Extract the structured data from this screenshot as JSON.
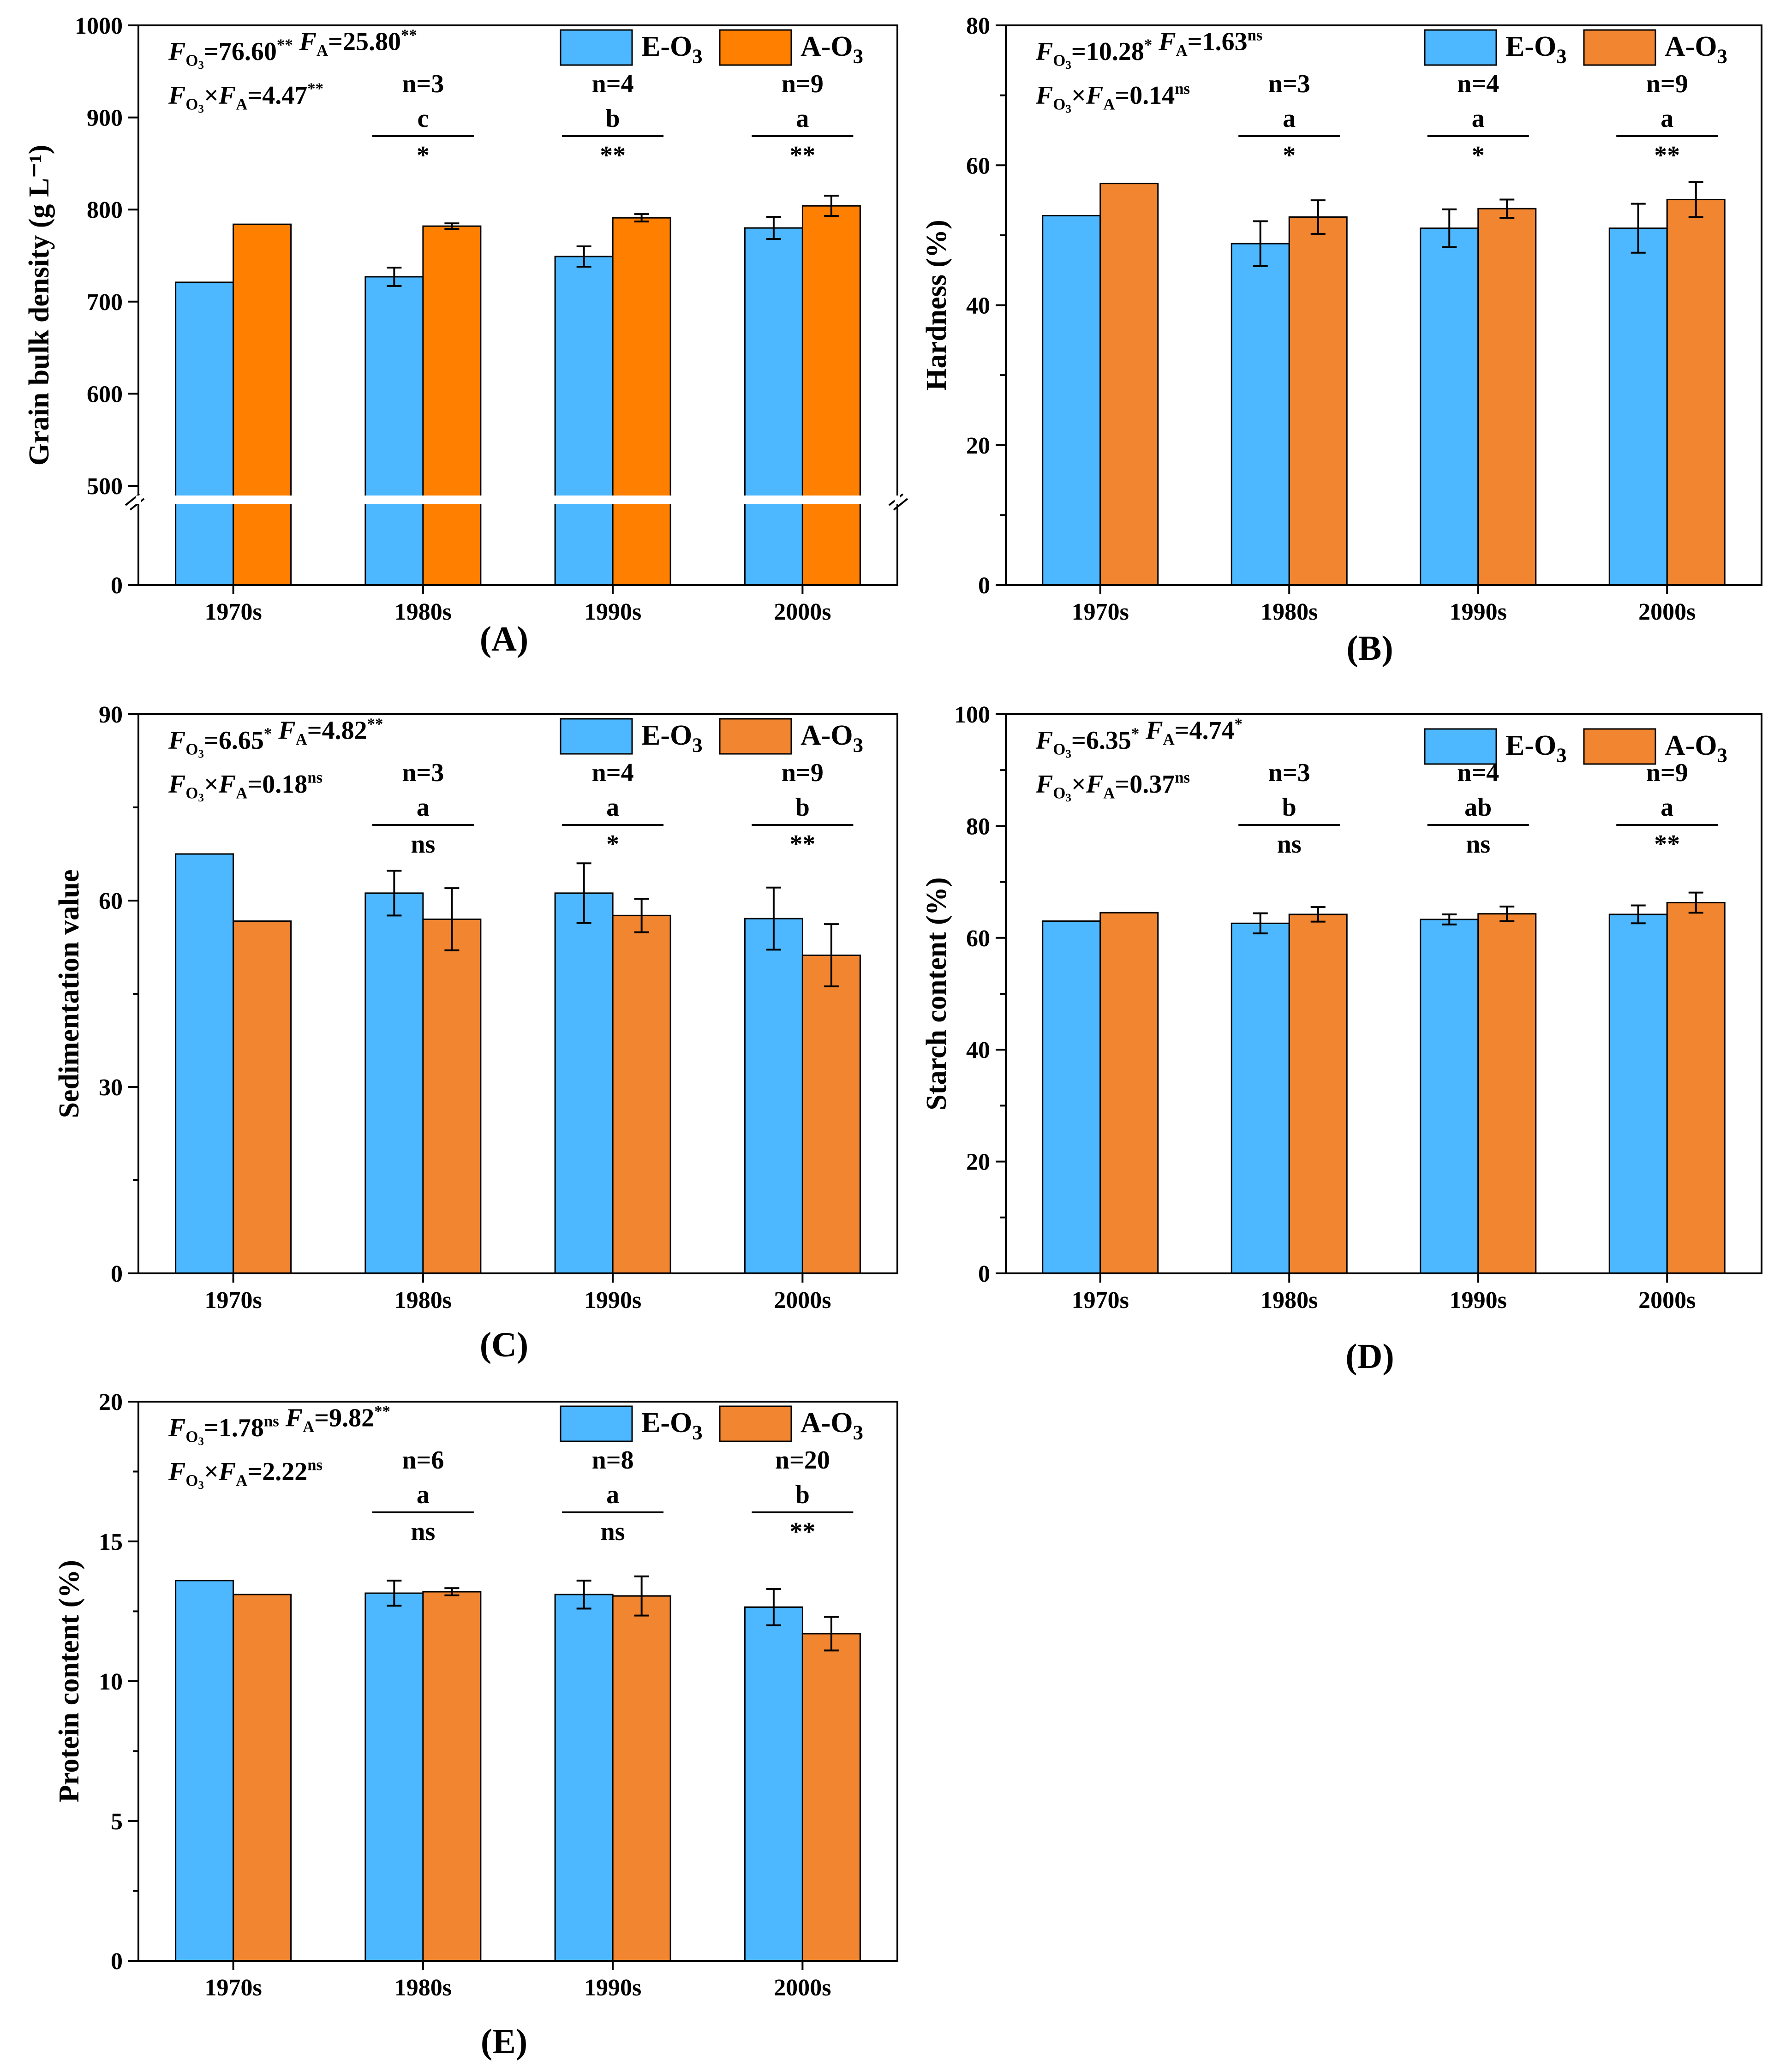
{
  "colors": {
    "e": "#4db8ff",
    "a_dark": "#ff7f00",
    "a": "#f28530",
    "axis": "#000000"
  },
  "legend": {
    "e": "E-O₃",
    "a": "A-O₃"
  },
  "chart_data": [
    {
      "id": "A",
      "type": "bar",
      "panel_label": "(A)",
      "ylabel": "Grain bulk density (g L⁻¹)",
      "categories": [
        "1970s",
        "1980s",
        "1990s",
        "2000s"
      ],
      "ylim": [
        0,
        1000
      ],
      "axis_break": [
        0,
        500
      ],
      "yticks": [
        {
          "v": 0,
          "label": "0"
        },
        {
          "v": 500,
          "label": "500"
        },
        {
          "v": 600,
          "label": "600"
        },
        {
          "v": 700,
          "label": "700"
        },
        {
          "v": 800,
          "label": "800"
        },
        {
          "v": 900,
          "label": "900"
        },
        {
          "v": 1000,
          "label": "1000"
        }
      ],
      "series": [
        {
          "name": "E-O₃",
          "values": [
            721,
            727,
            749,
            780
          ],
          "errors": [
            null,
            10,
            11,
            12
          ]
        },
        {
          "name": "A-O₃",
          "values": [
            784,
            782,
            791,
            804
          ],
          "errors": [
            null,
            3,
            4,
            11
          ]
        }
      ],
      "stats": [
        "F_O₃=76.60** F_A=25.80**",
        "F_O₃×F_A=4.47**"
      ],
      "annotations": [
        {
          "cat": 1,
          "n": "n=3",
          "letter": "c",
          "sig": "*"
        },
        {
          "cat": 2,
          "n": "n=4",
          "letter": "b",
          "sig": "**"
        },
        {
          "cat": 3,
          "n": "n=9",
          "letter": "a",
          "sig": "**"
        }
      ]
    },
    {
      "id": "B",
      "type": "bar",
      "panel_label": "(B)",
      "ylabel": "Hardness (%)",
      "categories": [
        "1970s",
        "1980s",
        "1990s",
        "2000s"
      ],
      "ylim": [
        0,
        80
      ],
      "yticks": [
        {
          "v": 0,
          "label": "0"
        },
        {
          "v": 20,
          "label": "20"
        },
        {
          "v": 40,
          "label": "40"
        },
        {
          "v": 60,
          "label": "60"
        },
        {
          "v": 80,
          "label": "80"
        }
      ],
      "series": [
        {
          "name": "E-O₃",
          "values": [
            52.8,
            48.8,
            51.0,
            51.0
          ],
          "errors": [
            null,
            3.2,
            2.7,
            3.5
          ]
        },
        {
          "name": "A-O₃",
          "values": [
            57.4,
            52.6,
            53.8,
            55.1
          ],
          "errors": [
            null,
            2.4,
            1.3,
            2.5
          ]
        }
      ],
      "stats": [
        "F_O₃=10.28* F_A=1.63ns",
        "F_O₃×F_A=0.14ns"
      ],
      "annotations": [
        {
          "cat": 1,
          "n": "n=3",
          "letter": "a",
          "sig": "*"
        },
        {
          "cat": 2,
          "n": "n=4",
          "letter": "a",
          "sig": "*"
        },
        {
          "cat": 3,
          "n": "n=9",
          "letter": "a",
          "sig": "**"
        }
      ]
    },
    {
      "id": "C",
      "type": "bar",
      "panel_label": "(C)",
      "ylabel": "Sedimentation value",
      "categories": [
        "1970s",
        "1980s",
        "1990s",
        "2000s"
      ],
      "ylim": [
        0,
        90
      ],
      "yticks": [
        {
          "v": 0,
          "label": "0"
        },
        {
          "v": 30,
          "label": "30"
        },
        {
          "v": 60,
          "label": "60"
        },
        {
          "v": 90,
          "label": "90"
        }
      ],
      "series": [
        {
          "name": "E-O₃",
          "values": [
            67.5,
            61.2,
            61.2,
            57.1
          ],
          "errors": [
            null,
            3.6,
            4.8,
            5.0
          ]
        },
        {
          "name": "A-O₃",
          "values": [
            56.7,
            57.0,
            57.6,
            51.2
          ],
          "errors": [
            null,
            5.0,
            2.7,
            5.0
          ]
        }
      ],
      "stats": [
        "F_O₃=6.65* F_A=4.82**",
        "F_O₃×F_A=0.18ns"
      ],
      "annotations": [
        {
          "cat": 1,
          "n": "n=3",
          "letter": "a",
          "sig": "ns"
        },
        {
          "cat": 2,
          "n": "n=4",
          "letter": "a",
          "sig": "*"
        },
        {
          "cat": 3,
          "n": "n=9",
          "letter": "b",
          "sig": "**"
        }
      ]
    },
    {
      "id": "D",
      "type": "bar",
      "panel_label": "(D)",
      "ylabel": "Starch content (%)",
      "categories": [
        "1970s",
        "1980s",
        "1990s",
        "2000s"
      ],
      "ylim": [
        0,
        100
      ],
      "yticks": [
        {
          "v": 0,
          "label": "0"
        },
        {
          "v": 20,
          "label": "20"
        },
        {
          "v": 40,
          "label": "40"
        },
        {
          "v": 60,
          "label": "60"
        },
        {
          "v": 80,
          "label": "80"
        },
        {
          "v": 100,
          "label": "100"
        }
      ],
      "series": [
        {
          "name": "E-O₃",
          "values": [
            63.0,
            62.6,
            63.3,
            64.2
          ],
          "errors": [
            null,
            1.8,
            0.9,
            1.6
          ]
        },
        {
          "name": "A-O₃",
          "values": [
            64.5,
            64.2,
            64.3,
            66.3
          ],
          "errors": [
            null,
            1.3,
            1.3,
            1.8
          ]
        }
      ],
      "stats": [
        "F_O₃=6.35* F_A=4.74*",
        "F_O₃×F_A=0.37ns"
      ],
      "annotations": [
        {
          "cat": 1,
          "n": "n=3",
          "letter": "b",
          "sig": "ns"
        },
        {
          "cat": 2,
          "n": "n=4",
          "letter": "ab",
          "sig": "ns"
        },
        {
          "cat": 3,
          "n": "n=9",
          "letter": "a",
          "sig": "**"
        }
      ]
    },
    {
      "id": "E",
      "type": "bar",
      "panel_label": "(E)",
      "ylabel": "Protein content (%)",
      "categories": [
        "1970s",
        "1980s",
        "1990s",
        "2000s"
      ],
      "ylim": [
        0,
        20
      ],
      "yticks": [
        {
          "v": 0,
          "label": "0"
        },
        {
          "v": 5,
          "label": "5"
        },
        {
          "v": 10,
          "label": "10"
        },
        {
          "v": 15,
          "label": "15"
        },
        {
          "v": 20,
          "label": "20"
        }
      ],
      "series": [
        {
          "name": "E-O₃",
          "values": [
            13.6,
            13.15,
            13.1,
            12.65
          ],
          "errors": [
            null,
            0.45,
            0.5,
            0.65
          ]
        },
        {
          "name": "A-O₃",
          "values": [
            13.1,
            13.2,
            13.05,
            11.7
          ],
          "errors": [
            null,
            0.13,
            0.7,
            0.6
          ]
        }
      ],
      "stats": [
        "F_O₃=1.78ns F_A=9.82**",
        "F_O₃×F_A=2.22ns"
      ],
      "annotations": [
        {
          "cat": 1,
          "n": "n=6",
          "letter": "a",
          "sig": "ns"
        },
        {
          "cat": 2,
          "n": "n=8",
          "letter": "a",
          "sig": "ns"
        },
        {
          "cat": 3,
          "n": "n=20",
          "letter": "b",
          "sig": "**"
        }
      ]
    }
  ]
}
